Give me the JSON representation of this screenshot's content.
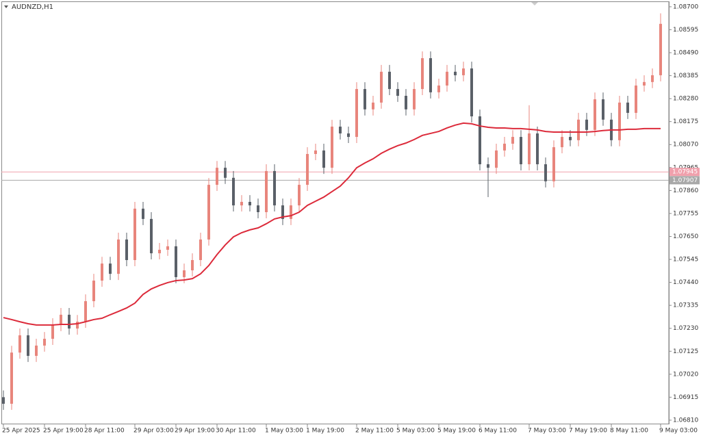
{
  "chart_data": {
    "type": "candlestick",
    "title": "AUDNZD,H1",
    "categories": [
      "25 Apr 2025",
      null,
      null,
      null,
      null,
      "25 Apr 19:00",
      null,
      null,
      null,
      null,
      "28 Apr 11:00",
      null,
      null,
      null,
      null,
      null,
      "29 Apr 03:00",
      null,
      null,
      null,
      null,
      "29 Apr 19:00",
      null,
      null,
      null,
      null,
      "30 Apr 11:00",
      null,
      null,
      null,
      null,
      null,
      "1 May 03:00",
      null,
      null,
      null,
      null,
      "1 May 19:00",
      null,
      null,
      null,
      null,
      null,
      "2 May 11:00",
      null,
      null,
      null,
      null,
      "5 May 03:00",
      null,
      null,
      null,
      null,
      "5 May 19:00",
      null,
      null,
      null,
      null,
      "6 May 11:00",
      null,
      null,
      null,
      null,
      null,
      "7 May 03:00",
      null,
      null,
      null,
      null,
      "7 May 19:00",
      null,
      null,
      null,
      null,
      "8 May 11:00",
      null,
      null,
      null,
      null,
      null,
      "9 May 03:00"
    ],
    "open": [
      1.06915,
      1.06885,
      1.07119,
      1.07198,
      1.07104,
      1.07151,
      1.07182,
      1.07245,
      1.07292,
      1.07229,
      1.0726,
      1.07354,
      1.07448,
      1.07526,
      1.07479,
      1.07636,
      1.07542,
      1.07777,
      1.0773,
      1.07573,
      1.07589,
      1.07605,
      1.07464,
      1.07495,
      1.07542,
      1.07636,
      1.07886,
      1.07964,
      1.07918,
      1.07792,
      1.07808,
      1.07792,
      1.07761,
      1.07949,
      1.07792,
      1.0773,
      1.07792,
      1.07886,
      1.08027,
      1.08043,
      1.07964,
      1.08152,
      1.08121,
      1.08105,
      1.08324,
      1.08231,
      1.08262,
      1.08403,
      1.08324,
      1.08293,
      1.08231,
      1.08324,
      1.08465,
      1.08309,
      1.0834,
      1.08403,
      1.08387,
      1.08418,
      1.08199,
      1.0798,
      1.07964,
      1.08043,
      1.08074,
      1.08105,
      1.0798,
      1.08121,
      1.0798,
      1.07902,
      1.08058,
      1.08105,
      1.0809,
      1.08184,
      1.08137,
      1.08277,
      1.08184,
      1.0809,
      1.08262,
      1.08215,
      1.0834,
      1.08356,
      1.08387
    ],
    "high": [
      1.06946,
      1.0715,
      1.07229,
      1.07229,
      1.07182,
      1.07213,
      1.07276,
      1.07323,
      1.07323,
      1.07291,
      1.07385,
      1.07479,
      1.07557,
      1.07557,
      1.07667,
      1.07667,
      1.07808,
      1.07808,
      1.07761,
      1.0762,
      1.07636,
      1.07636,
      1.07526,
      1.07573,
      1.07667,
      1.07917,
      1.07995,
      1.07995,
      1.07949,
      1.07839,
      1.07839,
      1.07823,
      1.0798,
      1.0798,
      1.07823,
      1.07823,
      1.07917,
      1.08058,
      1.08074,
      1.08074,
      1.08183,
      1.08183,
      1.08152,
      1.08355,
      1.08355,
      1.08293,
      1.08434,
      1.08434,
      1.08355,
      1.08324,
      1.08355,
      1.08496,
      1.08496,
      1.08371,
      1.08434,
      1.08434,
      1.08449,
      1.08449,
      1.0823,
      1.08011,
      1.08074,
      1.08105,
      1.08136,
      1.08136,
      1.0825,
      1.08152,
      1.08011,
      1.08089,
      1.08136,
      1.08136,
      1.08215,
      1.08215,
      1.08308,
      1.08308,
      1.08215,
      1.08293,
      1.08293,
      1.08371,
      1.08387,
      1.08418,
      1.0867
    ],
    "low": [
      1.06857,
      1.06857,
      1.07091,
      1.07076,
      1.07076,
      1.07123,
      1.07154,
      1.07217,
      1.07201,
      1.07201,
      1.07232,
      1.07326,
      1.0742,
      1.07451,
      1.07451,
      1.07514,
      1.07514,
      1.07702,
      1.07545,
      1.07545,
      1.07561,
      1.07436,
      1.07436,
      1.07467,
      1.07514,
      1.07608,
      1.07858,
      1.0789,
      1.07764,
      1.07764,
      1.07764,
      1.07733,
      1.07733,
      1.07764,
      1.07702,
      1.07702,
      1.07764,
      1.07858,
      1.07999,
      1.07936,
      1.07936,
      1.08093,
      1.08077,
      1.08077,
      1.08203,
      1.08203,
      1.08234,
      1.08296,
      1.08265,
      1.08203,
      1.08203,
      1.08296,
      1.08281,
      1.08281,
      1.08312,
      1.08359,
      1.08359,
      1.08171,
      1.07952,
      1.0783,
      1.07936,
      1.08015,
      1.08046,
      1.07952,
      1.07952,
      1.07952,
      1.07874,
      1.07874,
      1.0803,
      1.08062,
      1.08062,
      1.08109,
      1.08109,
      1.08156,
      1.08062,
      1.08062,
      1.08187,
      1.08187,
      1.08312,
      1.08328,
      1.08359
    ],
    "close": [
      1.06885,
      1.07119,
      1.07198,
      1.07104,
      1.07151,
      1.07182,
      1.07245,
      1.07292,
      1.07229,
      1.0726,
      1.07354,
      1.07448,
      1.07526,
      1.07479,
      1.07636,
      1.07542,
      1.07777,
      1.0773,
      1.07573,
      1.07589,
      1.07605,
      1.07464,
      1.07495,
      1.07542,
      1.07636,
      1.07886,
      1.07964,
      1.07918,
      1.07792,
      1.07808,
      1.07792,
      1.07761,
      1.07949,
      1.07792,
      1.0773,
      1.07792,
      1.07886,
      1.08027,
      1.08043,
      1.07964,
      1.08152,
      1.08121,
      1.08105,
      1.08324,
      1.08231,
      1.08262,
      1.08403,
      1.08324,
      1.08293,
      1.08231,
      1.08324,
      1.08465,
      1.08309,
      1.0834,
      1.08403,
      1.08387,
      1.08418,
      1.08199,
      1.0798,
      1.07964,
      1.08043,
      1.08074,
      1.08105,
      1.0798,
      1.08121,
      1.0798,
      1.07902,
      1.08058,
      1.08105,
      1.0809,
      1.08184,
      1.08137,
      1.08277,
      1.08184,
      1.0809,
      1.08262,
      1.08215,
      1.0834,
      1.08356,
      1.08387,
      1.08622
    ],
    "moving_average": {
      "color": "#dc2a3a",
      "values": [
        1.07279,
        1.0727,
        1.0726,
        1.07251,
        1.07245,
        1.07245,
        1.07245,
        1.07248,
        1.07248,
        1.07251,
        1.0726,
        1.0727,
        1.07276,
        1.07292,
        1.07307,
        1.07323,
        1.07345,
        1.07385,
        1.0741,
        1.07426,
        1.07439,
        1.07448,
        1.07451,
        1.07457,
        1.07479,
        1.07517,
        1.07567,
        1.07611,
        1.07648,
        1.07667,
        1.0768,
        1.07689,
        1.07708,
        1.0773,
        1.07739,
        1.07745,
        1.07761,
        1.07792,
        1.07811,
        1.0783,
        1.07855,
        1.0788,
        1.07918,
        1.07964,
        1.07986,
        1.08005,
        1.0803,
        1.08049,
        1.08065,
        1.08077,
        1.08093,
        1.08112,
        1.08121,
        1.0813,
        1.08146,
        1.08159,
        1.08168,
        1.08165,
        1.08155,
        1.08149,
        1.08146,
        1.08146,
        1.08143,
        1.08143,
        1.0814,
        1.08137,
        1.0813,
        1.08127,
        1.08127,
        1.08127,
        1.08127,
        1.08127,
        1.0813,
        1.08134,
        1.08137,
        1.08137,
        1.0814,
        1.0814,
        1.08143,
        1.08143,
        1.08143
      ]
    },
    "up_color": "#e8857c",
    "down_color": "#5a6068",
    "ask": {
      "value": 1.07945,
      "color": "#f0a0ac"
    },
    "bid": {
      "value": 1.07907,
      "color": "#a8a8a8"
    },
    "ylim": [
      1.06791,
      1.08731
    ],
    "yticks": [
      {
        "value": 1.087,
        "label": "1.08700"
      },
      1.08595,
      {
        "value": 1.0849,
        "label": "1.08490"
      },
      1.08385,
      {
        "value": 1.0828,
        "label": "1.08280"
      },
      1.08175,
      {
        "value": 1.0807,
        "label": "1.08070"
      },
      1.07965,
      {
        "value": 1.0786,
        "label": "1.07860"
      },
      1.07755,
      {
        "value": 1.0765,
        "label": "1.07650"
      },
      1.07545,
      {
        "value": 1.0744,
        "label": "1.07440"
      },
      1.07335,
      {
        "value": 1.0723,
        "label": "1.07230"
      },
      1.07125,
      {
        "value": 1.0702,
        "label": "1.07020"
      },
      1.06915,
      {
        "value": 1.0681,
        "label": "1.06810"
      }
    ]
  }
}
